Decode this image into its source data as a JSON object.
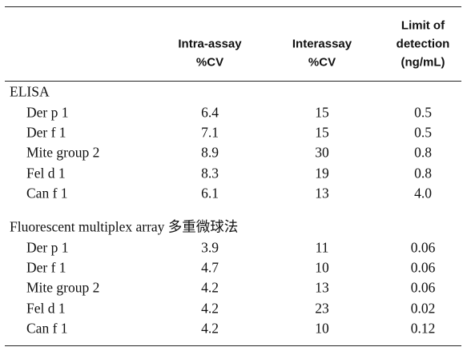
{
  "table": {
    "columns": [
      [
        "Intra-assay",
        "%CV"
      ],
      [
        "Interassay",
        "%CV"
      ],
      [
        "Limit of",
        "detection",
        "(ng/mL)"
      ]
    ],
    "sections": [
      {
        "title": "ELISA",
        "rows": [
          [
            "Der p 1",
            "6.4",
            "15",
            "0.5"
          ],
          [
            "Der f 1",
            "7.1",
            "15",
            "0.5"
          ],
          [
            "Mite group 2",
            "8.9",
            "30",
            "0.8"
          ],
          [
            "Fel d 1",
            "8.3",
            "19",
            "0.8"
          ],
          [
            "Can f 1",
            "6.1",
            "13",
            "4.0"
          ]
        ]
      },
      {
        "title": "Fluorescent multiplex array 多重微球法",
        "rows": [
          [
            "Der p 1",
            "3.9",
            "11",
            "0.06"
          ],
          [
            "Der f 1",
            "4.7",
            "10",
            "0.06"
          ],
          [
            "Mite group 2",
            "4.2",
            "13",
            "0.06"
          ],
          [
            "Fel d 1",
            "4.2",
            "23",
            "0.02"
          ],
          [
            "Can f 1",
            "4.2",
            "10",
            "0.12"
          ]
        ]
      }
    ]
  }
}
